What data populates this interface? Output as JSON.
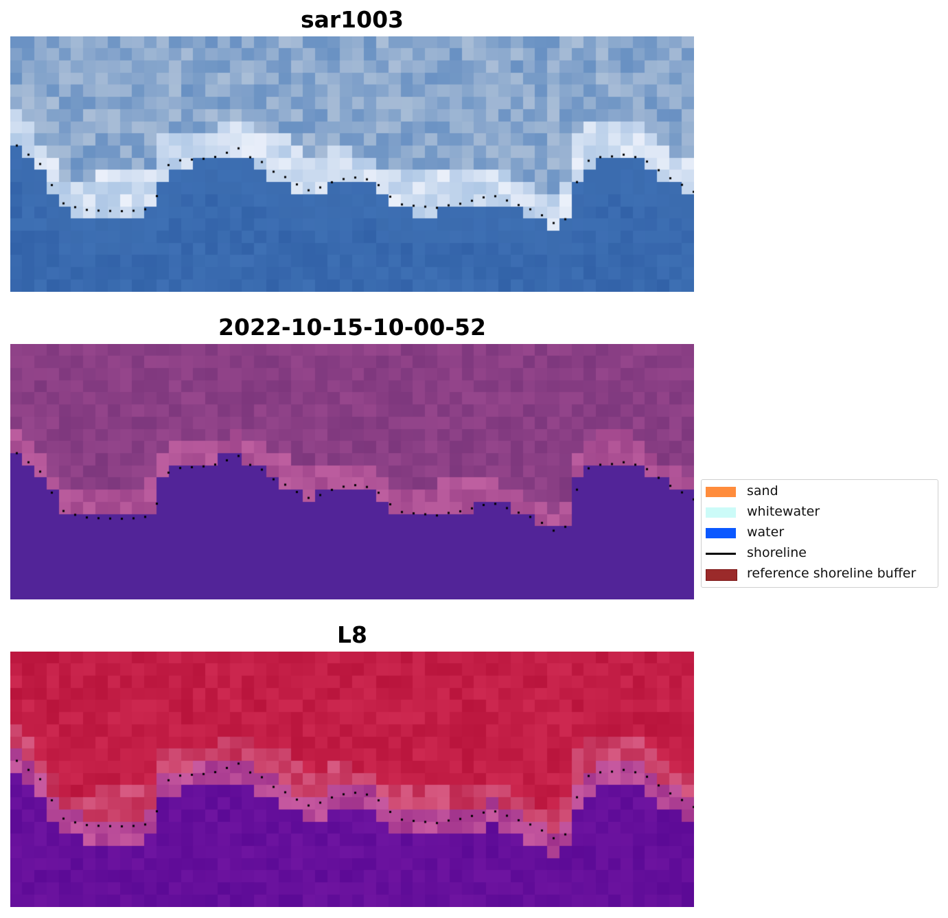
{
  "panels": [
    {
      "title": "sar1003",
      "colormap": "rgb"
    },
    {
      "title": "2022-10-15-10-00-52",
      "colormap": "classified"
    },
    {
      "title": "L8",
      "colormap": "index"
    }
  ],
  "legend": {
    "items": [
      {
        "label": "sand",
        "type": "patch",
        "color": "#ff8c3c"
      },
      {
        "label": "whitewater",
        "type": "patch",
        "color": "#ccfbf8"
      },
      {
        "label": "water",
        "type": "patch",
        "color": "#0b58ff"
      },
      {
        "label": "shoreline",
        "type": "line",
        "color": "#000000"
      },
      {
        "label": "reference shoreline buffer",
        "type": "patch",
        "color": "#9b2a2a",
        "border": "#7a1515"
      }
    ]
  },
  "colors": {
    "water_blue": "#3a6cb0",
    "land_blue": "#8aaad0",
    "land_magenta": "#8a3e86",
    "water_purple": "#52239a",
    "land_red": "#c1204a",
    "water_violet": "#5e0c9a"
  }
}
